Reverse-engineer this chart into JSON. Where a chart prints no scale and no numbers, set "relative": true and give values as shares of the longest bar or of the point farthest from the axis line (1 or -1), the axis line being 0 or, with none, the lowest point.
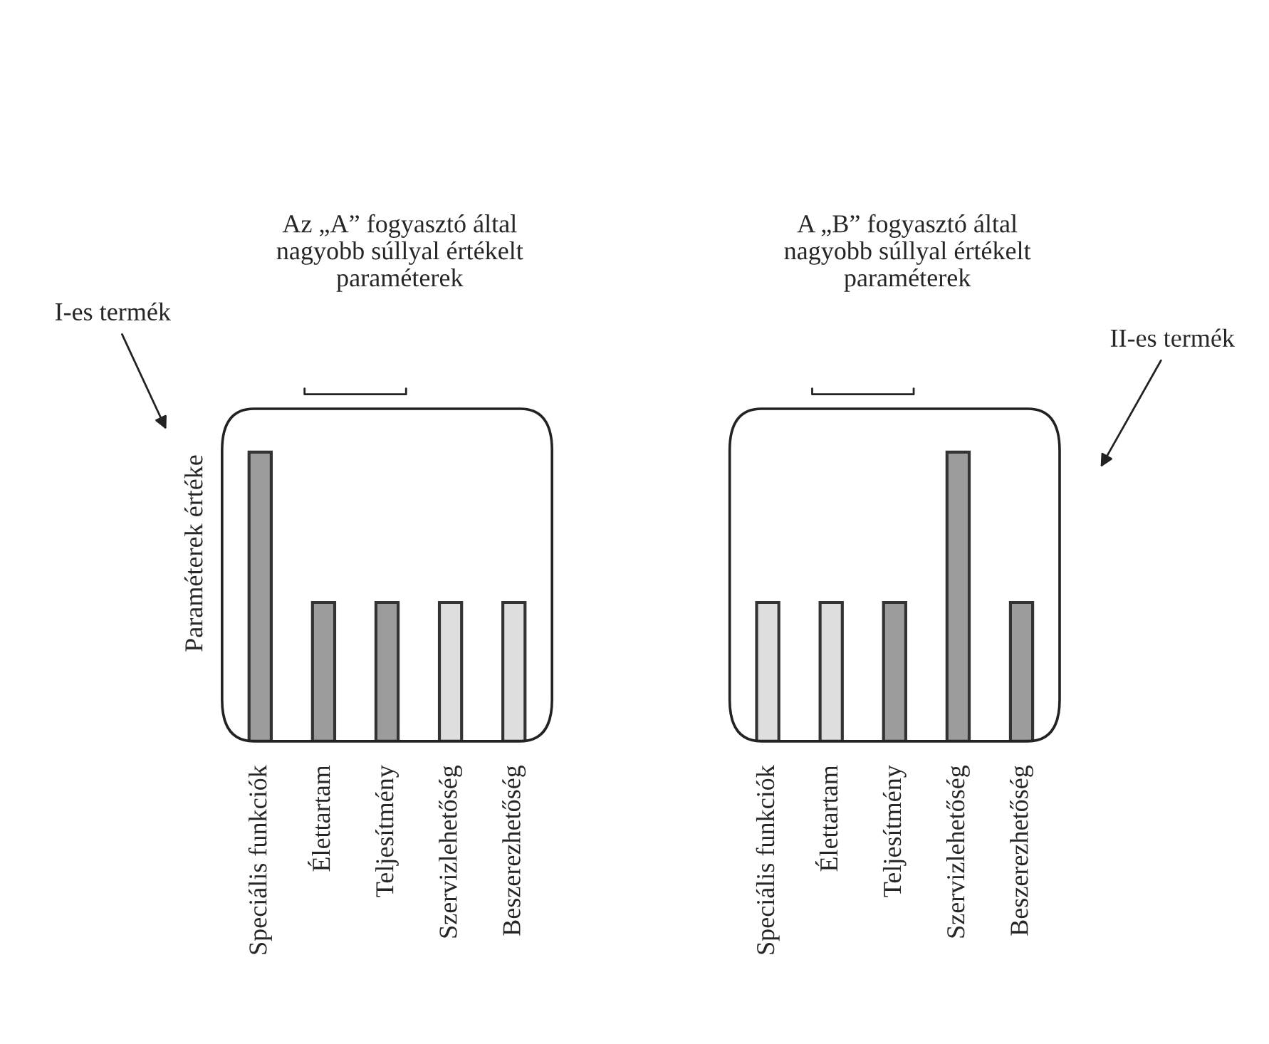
{
  "chart_data": [
    {
      "type": "bar",
      "relative": true,
      "title": "Az „A” fogyasztó által\nnagyobb súllyal értékelt\nparaméterek",
      "ylabel": "Paraméterek értéke",
      "annotations": [
        "I-es termék"
      ],
      "categories": [
        "Speciális funkciók",
        "Élettartam",
        "Teljesítmény",
        "Szervizlehetőség",
        "Beszerezhetőség"
      ],
      "values": [
        1,
        0.48,
        0.48,
        0.48,
        0.48
      ],
      "colors": [
        "#9c9c9c",
        "#9c9c9c",
        "#9c9c9c",
        "#dedede",
        "#dedede"
      ]
    },
    {
      "type": "bar",
      "relative": true,
      "title": "A „B” fogyasztó által\nnagyobb súllyal értékelt\nparaméterek",
      "annotations": [
        "II-es termék"
      ],
      "categories": [
        "Speciális funkciók",
        "Élettartam",
        "Teljesítmény",
        "Szervizlehetőség",
        "Beszerezhetőség"
      ],
      "values": [
        0.48,
        0.48,
        0.48,
        1,
        0.48
      ],
      "colors": [
        "#dedede",
        "#dedede",
        "#9c9c9c",
        "#9c9c9c",
        "#9c9c9c"
      ]
    }
  ]
}
